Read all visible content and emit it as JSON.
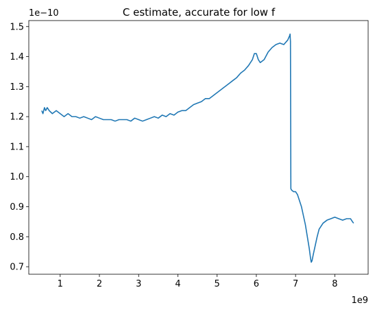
{
  "chart_data": {
    "type": "line",
    "title": "C estimate, accurate for low f",
    "xlabel": "",
    "ylabel": "",
    "x_multiplier_label": "1e9",
    "y_multiplier_label": "1e−10",
    "xlim": [
      0.2,
      8.85
    ],
    "ylim": [
      0.675,
      1.52
    ],
    "x_ticks": [
      1,
      2,
      3,
      4,
      5,
      6,
      7,
      8
    ],
    "x_tick_labels": [
      "1",
      "2",
      "3",
      "4",
      "5",
      "6",
      "7",
      "8"
    ],
    "y_ticks": [
      0.7,
      0.8,
      0.9,
      1.0,
      1.1,
      1.2,
      1.3,
      1.4,
      1.5
    ],
    "y_tick_labels": [
      "0.7",
      "0.8",
      "0.9",
      "1.0",
      "1.1",
      "1.2",
      "1.3",
      "1.4",
      "1.5"
    ],
    "grid": false,
    "legend": "none",
    "series": [
      {
        "color": "#1f77b4",
        "x": [
          0.53,
          0.56,
          0.6,
          0.63,
          0.67,
          0.72,
          0.8,
          0.9,
          1.0,
          1.1,
          1.2,
          1.3,
          1.4,
          1.5,
          1.6,
          1.7,
          1.8,
          1.9,
          2.0,
          2.1,
          2.2,
          2.3,
          2.4,
          2.5,
          2.6,
          2.7,
          2.8,
          2.9,
          3.0,
          3.1,
          3.2,
          3.3,
          3.4,
          3.5,
          3.6,
          3.7,
          3.8,
          3.9,
          4.0,
          4.1,
          4.2,
          4.3,
          4.4,
          4.5,
          4.6,
          4.7,
          4.8,
          4.9,
          5.0,
          5.1,
          5.2,
          5.3,
          5.4,
          5.5,
          5.6,
          5.7,
          5.8,
          5.9,
          5.95,
          6.0,
          6.05,
          6.1,
          6.2,
          6.3,
          6.4,
          6.5,
          6.6,
          6.7,
          6.8,
          6.85,
          6.86,
          6.87,
          6.88,
          6.9,
          6.95,
          7.0,
          7.05,
          7.1,
          7.15,
          7.2,
          7.25,
          7.3,
          7.35,
          7.38,
          7.4,
          7.42,
          7.45,
          7.5,
          7.55,
          7.6,
          7.7,
          7.8,
          7.9,
          8.0,
          8.1,
          8.2,
          8.3,
          8.4,
          8.45,
          8.48
        ],
        "y": [
          1.22,
          1.21,
          1.23,
          1.22,
          1.23,
          1.22,
          1.21,
          1.22,
          1.21,
          1.2,
          1.21,
          1.2,
          1.2,
          1.195,
          1.2,
          1.195,
          1.19,
          1.2,
          1.195,
          1.19,
          1.19,
          1.19,
          1.185,
          1.19,
          1.19,
          1.19,
          1.185,
          1.195,
          1.19,
          1.185,
          1.19,
          1.195,
          1.2,
          1.195,
          1.205,
          1.2,
          1.21,
          1.205,
          1.215,
          1.22,
          1.22,
          1.23,
          1.24,
          1.245,
          1.25,
          1.26,
          1.26,
          1.27,
          1.28,
          1.29,
          1.3,
          1.31,
          1.32,
          1.33,
          1.345,
          1.355,
          1.37,
          1.39,
          1.41,
          1.41,
          1.39,
          1.38,
          1.39,
          1.415,
          1.43,
          1.44,
          1.445,
          1.44,
          1.455,
          1.47,
          1.475,
          1.45,
          0.96,
          0.955,
          0.95,
          0.95,
          0.94,
          0.92,
          0.9,
          0.87,
          0.84,
          0.8,
          0.76,
          0.73,
          0.715,
          0.72,
          0.74,
          0.77,
          0.8,
          0.825,
          0.845,
          0.855,
          0.86,
          0.865,
          0.86,
          0.855,
          0.86,
          0.86,
          0.85,
          0.845
        ]
      }
    ]
  }
}
